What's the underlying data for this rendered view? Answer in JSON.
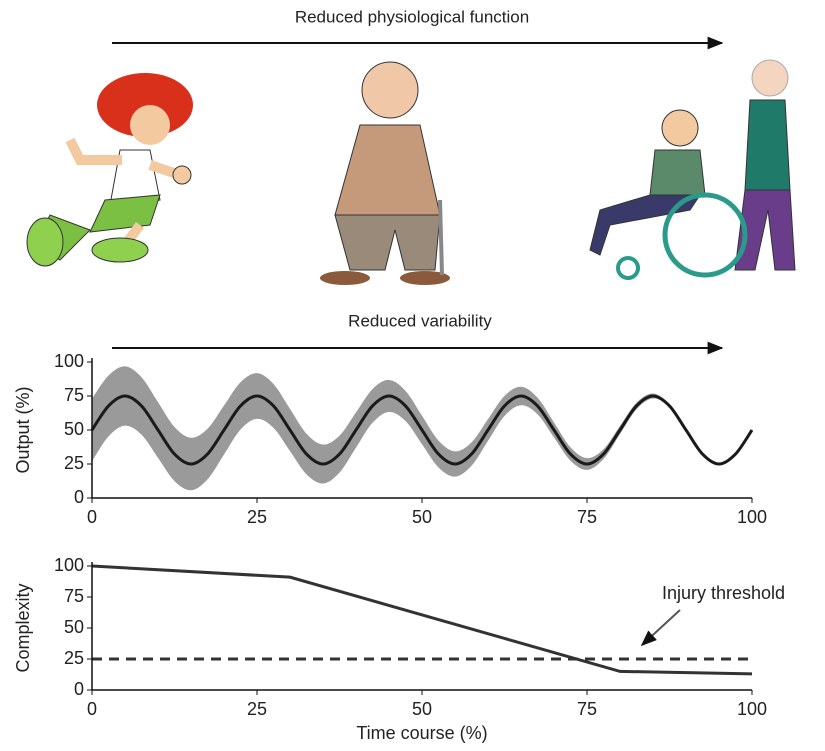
{
  "arrows": [
    "Reduced physiological function",
    "Reduced variability"
  ],
  "chart_data": [
    {
      "type": "line",
      "ylabel": "Output (%)",
      "x": [
        0,
        2.5,
        5,
        7.5,
        10,
        12.5,
        15,
        17.5,
        20,
        22.5,
        25,
        27.5,
        30,
        32.5,
        35,
        37.5,
        40,
        42.5,
        45,
        47.5,
        50,
        52.5,
        55,
        57.5,
        60,
        62.5,
        65,
        67.5,
        70,
        72.5,
        75,
        77.5,
        80,
        82.5,
        85,
        87.5,
        90,
        92.5,
        95,
        97.5,
        100
      ],
      "series": [
        {
          "color": "#1a1a1a",
          "values": [
            50,
            67.7,
            75,
            67.7,
            50,
            32.3,
            25,
            32.3,
            50,
            67.7,
            75,
            67.7,
            50,
            32.3,
            25,
            32.3,
            50,
            67.7,
            75,
            67.7,
            50,
            32.3,
            25,
            32.3,
            50,
            67.7,
            75,
            67.7,
            50,
            32.3,
            25,
            32.3,
            50,
            67.7,
            75,
            67.7,
            50,
            32.3,
            25,
            32.3,
            50
          ]
        }
      ],
      "band": {
        "color": "#9a9a9a",
        "upper": [
          73,
          90.1,
          96.8,
          88.8,
          70.5,
          52.2,
          44.3,
          50.9,
          68,
          85.1,
          91.8,
          83.8,
          65.5,
          47.2,
          39.3,
          45.9,
          63,
          80.1,
          86.8,
          78.8,
          60.5,
          42.2,
          34.3,
          40.9,
          58,
          75.1,
          81.8,
          73.8,
          55.5,
          37.2,
          29.3,
          35.9,
          53,
          70.1,
          76.8,
          68.8,
          50.5,
          32.3,
          25,
          32.3,
          50
        ],
        "lower": [
          27,
          45.3,
          53.2,
          46.6,
          29.5,
          12.4,
          5.7,
          13.7,
          32,
          50.3,
          58.2,
          51.6,
          34.5,
          17.4,
          10.7,
          18.7,
          37,
          55.3,
          63.2,
          56.6,
          39.5,
          22.4,
          15.7,
          23.7,
          42,
          60.3,
          68.2,
          61.6,
          44.5,
          27.4,
          20.7,
          28.7,
          47,
          65.3,
          73.2,
          66.6,
          49.5,
          32.3,
          25,
          32.3,
          50
        ]
      },
      "xlim": [
        0,
        100
      ],
      "xticks": [
        0,
        25,
        50,
        75,
        100
      ],
      "ylim": [
        0,
        100
      ],
      "yticks": [
        0,
        25,
        50,
        75,
        100
      ]
    },
    {
      "type": "line",
      "ylabel": "Complexity",
      "xlabel": "Time course (%)",
      "x": [
        0,
        30,
        80,
        100
      ],
      "series": [
        {
          "color": "#333333",
          "values": [
            100,
            91,
            15,
            13
          ]
        }
      ],
      "threshold": {
        "value": 25,
        "label": "Injury threshold",
        "color": "#333333"
      },
      "xlim": [
        0,
        100
      ],
      "xticks": [
        0,
        25,
        50,
        75,
        100
      ],
      "ylim": [
        0,
        100
      ],
      "yticks": [
        0,
        25,
        50,
        75,
        100
      ]
    }
  ]
}
